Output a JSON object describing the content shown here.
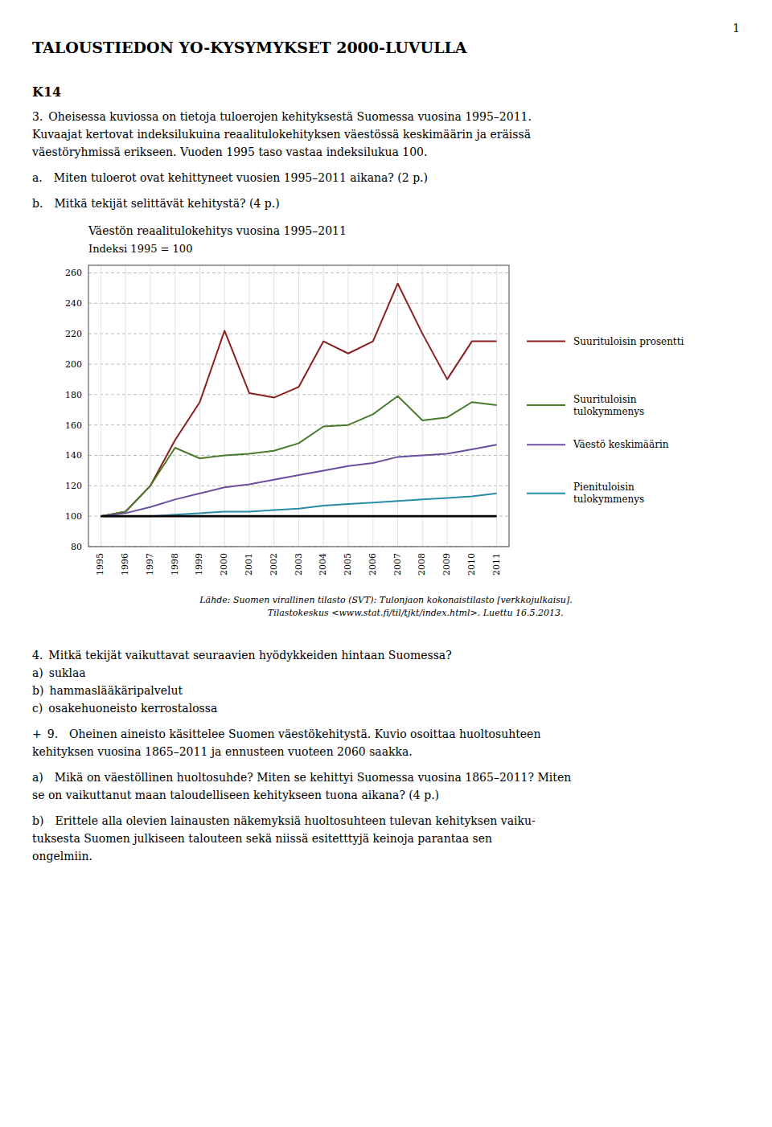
{
  "page": {
    "number": "1",
    "title": "TALOUSTIEDON YO-KYSYMYKSET 2000-LUVULLA",
    "section_label": "K14",
    "before": [
      [
        "3. Oheisessa kuviossa on tietoja tuloerojen kehityksestä Suomessa vuosina 1995–2011.",
        "Kuvaajat kertovat indeksilukuina reaalitulokehityksen väestössä keskimäärin ja eräissä",
        "väestöryhmissä erikseen. Vuoden 1995 taso vastaa indeksilukua 100."
      ],
      [
        "a. Miten tuloerot ovat kehittyneet vuosien 1995–2011 aikana? (2 p.)"
      ],
      [
        "b. Mitkä tekijät selittävät kehitystä? (4 p.)"
      ]
    ],
    "after": [
      [
        "4. Mitkä tekijät vaikuttavat seuraavien hyödykkeiden hintaan Suomessa?",
        "a) suklaa",
        "b) hammaslääkäripalvelut",
        "c) osakehuoneisto kerrostalossa"
      ],
      [
        "+ 9. Oheinen aineisto käsittelee Suomen väestökehitystä. Kuvio osoittaa huoltosuhteen",
        "kehityksen vuosina 1865–2011 ja ennusteen vuoteen 2060 saakka."
      ],
      [
        "a) Mikä on väestöllinen huoltosuhde? Miten se kehittyi Suomessa vuosina 1865–2011? Miten",
        "se on vaikuttanut maan taloudelliseen kehitykseen tuona aikana? (4 p.)"
      ],
      [
        "b) Erittele alla olevien lainausten näkemyksiä huoltosuhteen tulevan kehityksen vaiku-",
        "tuksesta Suomen julkiseen talouteen sekä niissä esitetttyjä keinoja parantaa sen",
        "ongelmiin."
      ]
    ]
  },
  "chart_data": {
    "type": "line",
    "title": "Väestön reaalitulokehitys vuosina 1995–2011",
    "subtitle": "Indeksi 1995 = 100",
    "source": "Lähde: Suomen virallinen tilasto (SVT): Tulonjaon kokonaistilasto [verkkojulkaisu].\n                     Tilastokeskus <www.stat.fi/til/tjkt/index.html>. Luettu 16.5.2013.",
    "x": [
      1995,
      1996,
      1997,
      1998,
      1999,
      2000,
      2001,
      2002,
      2003,
      2004,
      2005,
      2006,
      2007,
      2008,
      2009,
      2010,
      2011
    ],
    "series": [
      {
        "name": "Suurituloisin prosentti",
        "color": "#8B2020",
        "values": [
          100,
          103,
          120,
          150,
          175,
          222,
          181,
          178,
          185,
          215,
          207,
          215,
          253,
          220,
          190,
          215,
          215
        ]
      },
      {
        "name": "Suurituloisin\ntulokymmenys",
        "color": "#4B7A2B",
        "values": [
          100,
          103,
          120,
          145,
          138,
          140,
          141,
          143,
          148,
          159,
          160,
          167,
          179,
          163,
          165,
          175,
          173
        ]
      },
      {
        "name": "Väestö keskimäärin",
        "color": "#6B4FA0",
        "values": [
          100,
          102,
          106,
          111,
          115,
          119,
          121,
          124,
          127,
          130,
          133,
          135,
          139,
          140,
          141,
          144,
          147
        ]
      },
      {
        "name": "Pienituloisin\ntulokymmenys",
        "color": "#2B8AAA",
        "values": [
          100,
          100,
          100,
          101,
          102,
          103,
          103,
          104,
          105,
          107,
          108,
          109,
          110,
          111,
          112,
          113,
          115
        ]
      },
      {
        "color": "#000000",
        "values": [
          100,
          100,
          100,
          100,
          100,
          100,
          100,
          100,
          100,
          100,
          100,
          100,
          100,
          100,
          100,
          100,
          100
        ]
      }
    ],
    "xlim": [
      1994.5,
      2011.5
    ],
    "xticks": [
      1995,
      1996,
      1997,
      1998,
      1999,
      2000,
      2001,
      2002,
      2003,
      2004,
      2005,
      2006,
      2007,
      2008,
      2009,
      2010,
      2011
    ],
    "ylim": [
      80,
      265
    ],
    "yticks": [
      80,
      100,
      120,
      140,
      160,
      180,
      200,
      220,
      240,
      260
    ],
    "grid": true
  }
}
